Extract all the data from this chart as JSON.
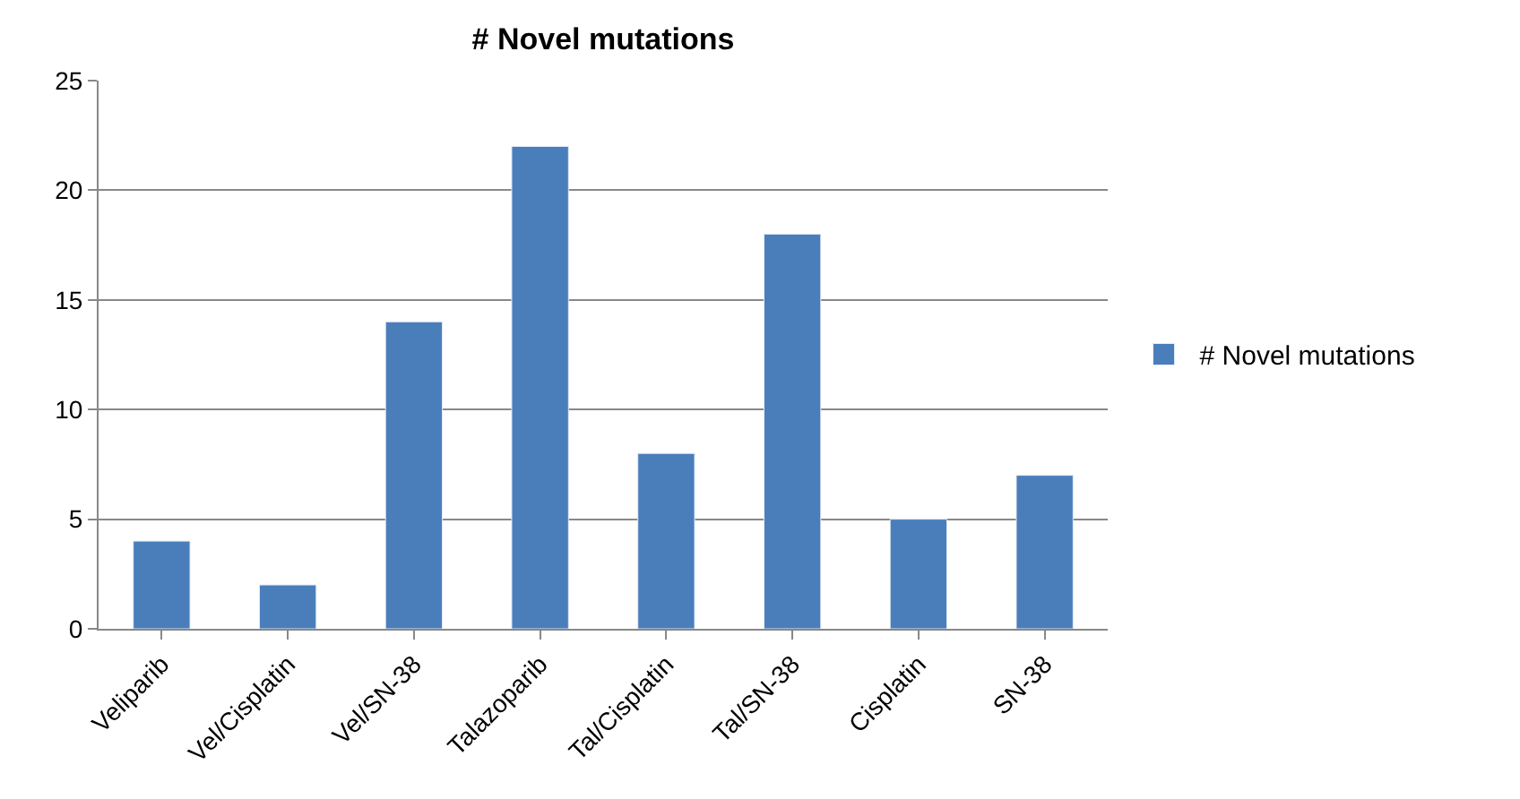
{
  "chart_data": {
    "type": "bar",
    "title": "# Novel mutations",
    "categories": [
      "Veliparib",
      "Vel/Cisplatin",
      "Vel/SN-38",
      "Talazoparib",
      "Tal/Cisplatin",
      "Tal/SN-38",
      "Cisplatin",
      "SN-38"
    ],
    "series": [
      {
        "name": "# Novel mutations",
        "color": "#4a7ebb",
        "values": [
          4,
          2,
          14,
          22,
          8,
          18,
          5,
          7
        ]
      }
    ],
    "ylim": [
      0,
      25
    ],
    "yticks": [
      0,
      5,
      10,
      15,
      20,
      25
    ],
    "grid": "y",
    "legend": "right"
  }
}
